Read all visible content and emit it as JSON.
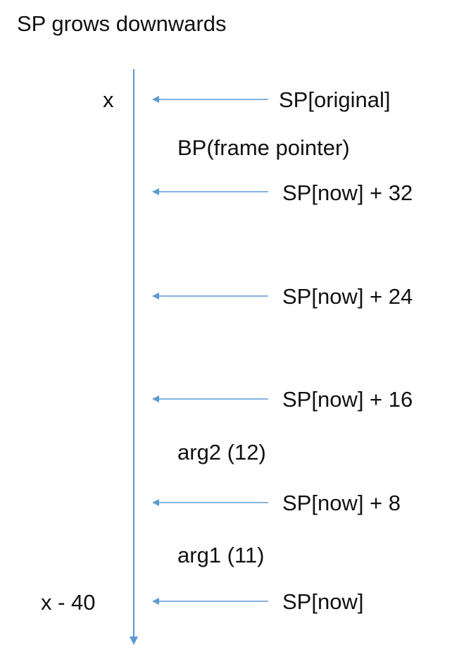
{
  "title": "SP grows downwards",
  "stack": {
    "top_marker": "x",
    "bottom_marker": "x - 40",
    "pointers": [
      {
        "label": "SP[original]"
      },
      {
        "label": "SP[now] + 32"
      },
      {
        "label": "SP[now] + 24"
      },
      {
        "label": "SP[now] + 16"
      },
      {
        "label": "SP[now] + 8"
      },
      {
        "label": "SP[now]"
      }
    ],
    "annotations": [
      {
        "label": "BP(frame pointer)"
      },
      {
        "label": "arg2 (12)"
      },
      {
        "label": "arg1 (11)"
      }
    ]
  },
  "colors": {
    "line": "#5B9BD5",
    "text": "#111111"
  }
}
